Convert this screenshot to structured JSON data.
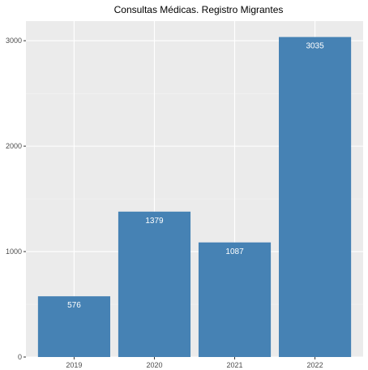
{
  "chart_data": {
    "type": "bar",
    "title": "Consultas Médicas. Registro Migrantes",
    "xlabel": "",
    "ylabel": "",
    "categories": [
      "2019",
      "2020",
      "2021",
      "2022"
    ],
    "values": [
      576,
      1379,
      1087,
      3035
    ],
    "data_labels": [
      "576",
      "1379",
      "1087",
      "3035"
    ],
    "yticks": [
      0,
      1000,
      2000,
      3000
    ],
    "ytick_labels": [
      "0",
      "1000",
      "2000",
      "3000"
    ],
    "ylim": [
      0,
      3186
    ],
    "grid": true,
    "colors": {
      "bar": "#4682b4",
      "panel": "#ebebeb",
      "grid_major": "#ffffff",
      "grid_minor": "#f4f4f4"
    }
  }
}
